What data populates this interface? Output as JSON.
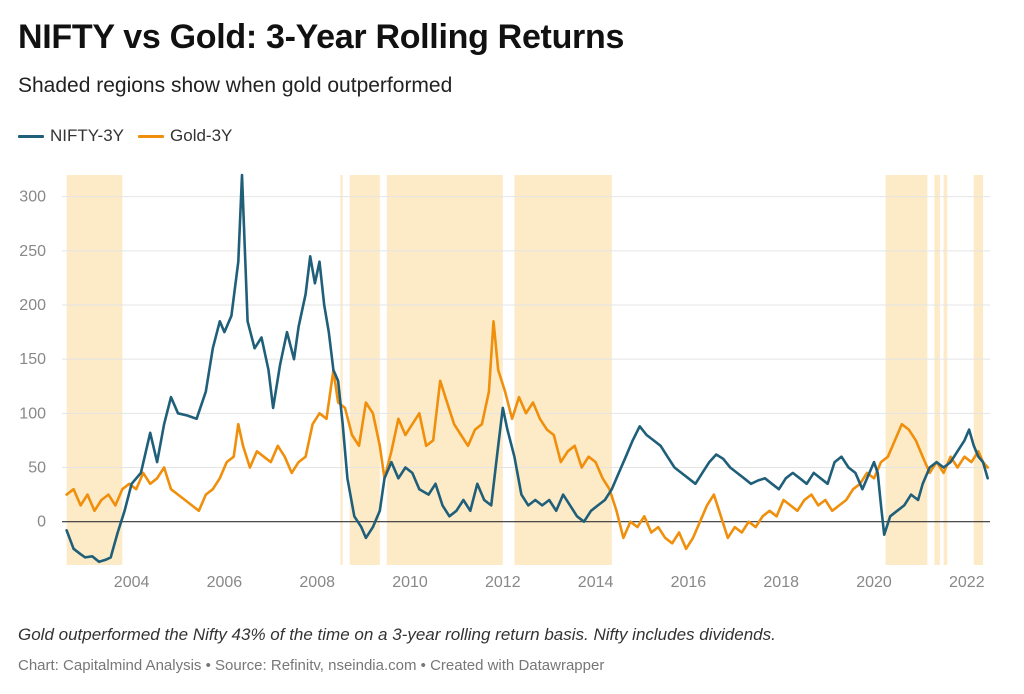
{
  "title": "NIFTY vs Gold: 3-Year Rolling Returns",
  "subtitle": "Shaded regions show when gold outperformed",
  "legend": [
    {
      "label": "NIFTY-3Y",
      "color": "#1f5f7a"
    },
    {
      "label": "Gold-3Y",
      "color": "#f08f0c"
    }
  ],
  "note": "Gold outperformed the Nifty 43% of the time on a 3-year rolling return basis. Nifty includes dividends.",
  "credit": "Chart: Capitalmind Analysis • Source: Refinitv, nseindia.com • Created with Datawrapper",
  "colors": {
    "nifty": "#1f5f7a",
    "gold": "#f08f0c",
    "shade": "#fdebc8",
    "grid": "#e4e4e4",
    "zero": "#333333"
  },
  "chart_data": {
    "type": "line",
    "xlim": [
      2002.5,
      2022.5
    ],
    "ylim": [
      -40,
      320
    ],
    "x_ticks": [
      "2004",
      "2006",
      "2008",
      "2010",
      "2012",
      "2014",
      "2016",
      "2018",
      "2020",
      "2022"
    ],
    "x_tick_values": [
      2004,
      2006,
      2008,
      2010,
      2012,
      2014,
      2016,
      2018,
      2020,
      2022
    ],
    "y_ticks": [
      "0",
      "50",
      "100",
      "150",
      "200",
      "250",
      "300"
    ],
    "y_tick_values": [
      0,
      50,
      100,
      150,
      200,
      250,
      300
    ],
    "gridlines": true,
    "legend_position": "top-left",
    "shaded_regions_gold_outperformed": [
      [
        2002.6,
        2003.8
      ],
      [
        2008.5,
        2008.55
      ],
      [
        2008.7,
        2009.35
      ],
      [
        2009.5,
        2012.0
      ],
      [
        2012.25,
        2014.35
      ],
      [
        2020.25,
        2021.15
      ],
      [
        2021.3,
        2021.42
      ],
      [
        2021.5,
        2021.58
      ],
      [
        2022.15,
        2022.35
      ]
    ],
    "series": [
      {
        "name": "NIFTY-3Y",
        "points": [
          [
            2002.6,
            -8
          ],
          [
            2002.75,
            -25
          ],
          [
            2002.9,
            -30
          ],
          [
            2003.0,
            -33
          ],
          [
            2003.15,
            -32
          ],
          [
            2003.3,
            -37
          ],
          [
            2003.45,
            -35
          ],
          [
            2003.55,
            -33
          ],
          [
            2003.7,
            -10
          ],
          [
            2003.85,
            10
          ],
          [
            2004.0,
            35
          ],
          [
            2004.2,
            45
          ],
          [
            2004.4,
            82
          ],
          [
            2004.55,
            55
          ],
          [
            2004.7,
            90
          ],
          [
            2004.85,
            115
          ],
          [
            2005.0,
            100
          ],
          [
            2005.2,
            98
          ],
          [
            2005.4,
            95
          ],
          [
            2005.6,
            120
          ],
          [
            2005.75,
            160
          ],
          [
            2005.9,
            185
          ],
          [
            2006.0,
            175
          ],
          [
            2006.15,
            190
          ],
          [
            2006.3,
            240
          ],
          [
            2006.38,
            320
          ],
          [
            2006.5,
            185
          ],
          [
            2006.65,
            160
          ],
          [
            2006.8,
            170
          ],
          [
            2006.95,
            140
          ],
          [
            2007.05,
            105
          ],
          [
            2007.2,
            145
          ],
          [
            2007.35,
            175
          ],
          [
            2007.5,
            150
          ],
          [
            2007.6,
            180
          ],
          [
            2007.75,
            210
          ],
          [
            2007.85,
            245
          ],
          [
            2007.95,
            220
          ],
          [
            2008.05,
            240
          ],
          [
            2008.15,
            200
          ],
          [
            2008.25,
            175
          ],
          [
            2008.35,
            140
          ],
          [
            2008.45,
            130
          ],
          [
            2008.55,
            90
          ],
          [
            2008.65,
            40
          ],
          [
            2008.8,
            5
          ],
          [
            2008.95,
            -5
          ],
          [
            2009.05,
            -15
          ],
          [
            2009.2,
            -5
          ],
          [
            2009.35,
            10
          ],
          [
            2009.45,
            40
          ],
          [
            2009.6,
            55
          ],
          [
            2009.75,
            40
          ],
          [
            2009.9,
            50
          ],
          [
            2010.05,
            45
          ],
          [
            2010.2,
            30
          ],
          [
            2010.4,
            25
          ],
          [
            2010.55,
            35
          ],
          [
            2010.7,
            15
          ],
          [
            2010.85,
            5
          ],
          [
            2011.0,
            10
          ],
          [
            2011.15,
            20
          ],
          [
            2011.3,
            10
          ],
          [
            2011.45,
            35
          ],
          [
            2011.6,
            20
          ],
          [
            2011.75,
            15
          ],
          [
            2011.9,
            70
          ],
          [
            2012.0,
            105
          ],
          [
            2012.1,
            85
          ],
          [
            2012.25,
            60
          ],
          [
            2012.4,
            25
          ],
          [
            2012.55,
            15
          ],
          [
            2012.7,
            20
          ],
          [
            2012.85,
            15
          ],
          [
            2013.0,
            20
          ],
          [
            2013.15,
            10
          ],
          [
            2013.3,
            25
          ],
          [
            2013.45,
            15
          ],
          [
            2013.6,
            5
          ],
          [
            2013.75,
            0
          ],
          [
            2013.9,
            10
          ],
          [
            2014.05,
            15
          ],
          [
            2014.2,
            20
          ],
          [
            2014.35,
            30
          ],
          [
            2014.5,
            45
          ],
          [
            2014.65,
            60
          ],
          [
            2014.8,
            75
          ],
          [
            2014.95,
            88
          ],
          [
            2015.1,
            80
          ],
          [
            2015.25,
            75
          ],
          [
            2015.4,
            70
          ],
          [
            2015.55,
            60
          ],
          [
            2015.7,
            50
          ],
          [
            2015.85,
            45
          ],
          [
            2016.0,
            40
          ],
          [
            2016.15,
            35
          ],
          [
            2016.3,
            45
          ],
          [
            2016.45,
            55
          ],
          [
            2016.6,
            62
          ],
          [
            2016.75,
            58
          ],
          [
            2016.9,
            50
          ],
          [
            2017.05,
            45
          ],
          [
            2017.2,
            40
          ],
          [
            2017.35,
            35
          ],
          [
            2017.5,
            38
          ],
          [
            2017.65,
            40
          ],
          [
            2017.8,
            35
          ],
          [
            2017.95,
            30
          ],
          [
            2018.1,
            40
          ],
          [
            2018.25,
            45
          ],
          [
            2018.4,
            40
          ],
          [
            2018.55,
            35
          ],
          [
            2018.7,
            45
          ],
          [
            2018.85,
            40
          ],
          [
            2019.0,
            35
          ],
          [
            2019.15,
            55
          ],
          [
            2019.3,
            60
          ],
          [
            2019.45,
            50
          ],
          [
            2019.6,
            45
          ],
          [
            2019.75,
            30
          ],
          [
            2019.9,
            45
          ],
          [
            2020.0,
            55
          ],
          [
            2020.08,
            45
          ],
          [
            2020.15,
            15
          ],
          [
            2020.22,
            -12
          ],
          [
            2020.35,
            5
          ],
          [
            2020.5,
            10
          ],
          [
            2020.65,
            15
          ],
          [
            2020.8,
            25
          ],
          [
            2020.95,
            20
          ],
          [
            2021.05,
            35
          ],
          [
            2021.2,
            50
          ],
          [
            2021.35,
            55
          ],
          [
            2021.5,
            50
          ],
          [
            2021.65,
            55
          ],
          [
            2021.8,
            65
          ],
          [
            2021.95,
            75
          ],
          [
            2022.05,
            85
          ],
          [
            2022.15,
            70
          ],
          [
            2022.25,
            60
          ],
          [
            2022.35,
            55
          ],
          [
            2022.45,
            40
          ]
        ]
      },
      {
        "name": "Gold-3Y",
        "points": [
          [
            2002.6,
            25
          ],
          [
            2002.75,
            30
          ],
          [
            2002.9,
            15
          ],
          [
            2003.05,
            25
          ],
          [
            2003.2,
            10
          ],
          [
            2003.35,
            20
          ],
          [
            2003.5,
            25
          ],
          [
            2003.65,
            15
          ],
          [
            2003.8,
            30
          ],
          [
            2003.95,
            35
          ],
          [
            2004.1,
            30
          ],
          [
            2004.25,
            45
          ],
          [
            2004.4,
            35
          ],
          [
            2004.55,
            40
          ],
          [
            2004.7,
            50
          ],
          [
            2004.85,
            30
          ],
          [
            2005.0,
            25
          ],
          [
            2005.15,
            20
          ],
          [
            2005.3,
            15
          ],
          [
            2005.45,
            10
          ],
          [
            2005.6,
            25
          ],
          [
            2005.75,
            30
          ],
          [
            2005.9,
            40
          ],
          [
            2006.05,
            55
          ],
          [
            2006.2,
            60
          ],
          [
            2006.3,
            90
          ],
          [
            2006.4,
            70
          ],
          [
            2006.55,
            50
          ],
          [
            2006.7,
            65
          ],
          [
            2006.85,
            60
          ],
          [
            2007.0,
            55
          ],
          [
            2007.15,
            70
          ],
          [
            2007.3,
            60
          ],
          [
            2007.45,
            45
          ],
          [
            2007.6,
            55
          ],
          [
            2007.75,
            60
          ],
          [
            2007.9,
            90
          ],
          [
            2008.05,
            100
          ],
          [
            2008.2,
            95
          ],
          [
            2008.35,
            140
          ],
          [
            2008.45,
            110
          ],
          [
            2008.6,
            105
          ],
          [
            2008.75,
            80
          ],
          [
            2008.9,
            70
          ],
          [
            2009.05,
            110
          ],
          [
            2009.2,
            100
          ],
          [
            2009.35,
            70
          ],
          [
            2009.45,
            40
          ],
          [
            2009.6,
            65
          ],
          [
            2009.75,
            95
          ],
          [
            2009.9,
            80
          ],
          [
            2010.05,
            90
          ],
          [
            2010.2,
            100
          ],
          [
            2010.35,
            70
          ],
          [
            2010.5,
            75
          ],
          [
            2010.65,
            130
          ],
          [
            2010.8,
            110
          ],
          [
            2010.95,
            90
          ],
          [
            2011.1,
            80
          ],
          [
            2011.25,
            70
          ],
          [
            2011.4,
            85
          ],
          [
            2011.55,
            90
          ],
          [
            2011.7,
            120
          ],
          [
            2011.8,
            185
          ],
          [
            2011.9,
            140
          ],
          [
            2012.05,
            120
          ],
          [
            2012.2,
            95
          ],
          [
            2012.35,
            115
          ],
          [
            2012.5,
            100
          ],
          [
            2012.65,
            110
          ],
          [
            2012.8,
            95
          ],
          [
            2012.95,
            85
          ],
          [
            2013.1,
            80
          ],
          [
            2013.25,
            55
          ],
          [
            2013.4,
            65
          ],
          [
            2013.55,
            70
          ],
          [
            2013.7,
            50
          ],
          [
            2013.85,
            60
          ],
          [
            2014.0,
            55
          ],
          [
            2014.15,
            40
          ],
          [
            2014.3,
            30
          ],
          [
            2014.45,
            10
          ],
          [
            2014.6,
            -15
          ],
          [
            2014.75,
            0
          ],
          [
            2014.9,
            -5
          ],
          [
            2015.05,
            5
          ],
          [
            2015.2,
            -10
          ],
          [
            2015.35,
            -5
          ],
          [
            2015.5,
            -15
          ],
          [
            2015.65,
            -20
          ],
          [
            2015.8,
            -10
          ],
          [
            2015.95,
            -25
          ],
          [
            2016.1,
            -15
          ],
          [
            2016.25,
            0
          ],
          [
            2016.4,
            15
          ],
          [
            2016.55,
            25
          ],
          [
            2016.7,
            5
          ],
          [
            2016.85,
            -15
          ],
          [
            2017.0,
            -5
          ],
          [
            2017.15,
            -10
          ],
          [
            2017.3,
            0
          ],
          [
            2017.45,
            -5
          ],
          [
            2017.6,
            5
          ],
          [
            2017.75,
            10
          ],
          [
            2017.9,
            5
          ],
          [
            2018.05,
            20
          ],
          [
            2018.2,
            15
          ],
          [
            2018.35,
            10
          ],
          [
            2018.5,
            20
          ],
          [
            2018.65,
            25
          ],
          [
            2018.8,
            15
          ],
          [
            2018.95,
            20
          ],
          [
            2019.1,
            10
          ],
          [
            2019.25,
            15
          ],
          [
            2019.4,
            20
          ],
          [
            2019.55,
            30
          ],
          [
            2019.7,
            35
          ],
          [
            2019.85,
            45
          ],
          [
            2020.0,
            40
          ],
          [
            2020.15,
            55
          ],
          [
            2020.3,
            60
          ],
          [
            2020.45,
            75
          ],
          [
            2020.6,
            90
          ],
          [
            2020.75,
            85
          ],
          [
            2020.9,
            75
          ],
          [
            2021.05,
            60
          ],
          [
            2021.2,
            45
          ],
          [
            2021.35,
            55
          ],
          [
            2021.5,
            45
          ],
          [
            2021.65,
            60
          ],
          [
            2021.8,
            50
          ],
          [
            2021.95,
            60
          ],
          [
            2022.1,
            55
          ],
          [
            2022.25,
            65
          ],
          [
            2022.35,
            55
          ],
          [
            2022.45,
            50
          ]
        ]
      }
    ]
  }
}
